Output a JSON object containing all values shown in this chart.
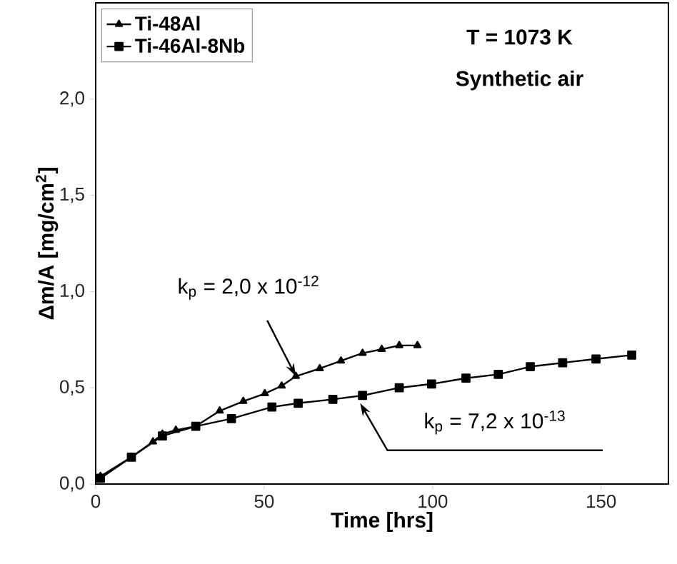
{
  "chart_data": {
    "type": "line",
    "xlabel": "Time [hrs]",
    "ylabel": "Δm/A [mg/cm$^{2}$]",
    "xlim": [
      0,
      170
    ],
    "ylim": [
      0,
      2.5
    ],
    "xticks": [
      0,
      50,
      100,
      150
    ],
    "yticks": [
      {
        "value": 0,
        "label": "0,0"
      },
      {
        "value": 0.5,
        "label": "0,5"
      },
      {
        "value": 1.0,
        "label": "1,0"
      },
      {
        "value": 1.5,
        "label": "1,5"
      },
      {
        "value": 2.0,
        "label": "2,0"
      }
    ],
    "legend": "top left",
    "grid": false,
    "series": [
      {
        "name": "Ti-48Al",
        "color": "#000000",
        "marker": "triangle",
        "x": [
          1.4,
          10.6,
          17.0,
          19.8,
          23.8,
          29.7,
          36.8,
          43.8,
          50.2,
          55.2,
          59.4,
          66.5,
          72.8,
          79.2,
          84.9,
          90.1,
          95.5
        ],
        "values": [
          0.04,
          0.14,
          0.22,
          0.26,
          0.28,
          0.3,
          0.38,
          0.43,
          0.47,
          0.51,
          0.56,
          0.6,
          0.64,
          0.68,
          0.7,
          0.72,
          0.72
        ]
      },
      {
        "name": "Ti-46Al-8Nb",
        "color": "#000000",
        "marker": "square",
        "x": [
          1.4,
          10.6,
          19.8,
          29.7,
          40.3,
          52.3,
          60.1,
          70.4,
          79.2,
          90.1,
          99.7,
          109.9,
          119.5,
          129.0,
          138.6,
          148.5,
          159.1
        ],
        "values": [
          0.03,
          0.14,
          0.25,
          0.3,
          0.34,
          0.4,
          0.42,
          0.44,
          0.46,
          0.5,
          0.52,
          0.55,
          0.57,
          0.61,
          0.63,
          0.65,
          0.67
        ]
      }
    ],
    "annotations": [
      "T = 1073 K",
      "Synthetic air",
      {
        "text": "k$_{p}$ = 2,0 x 10$^{-12}$",
        "x": 59.4,
        "y": 0.56
      },
      {
        "text": "k$_{p}$ = 7,2 x 10$^{-13}$",
        "x": 78.5,
        "y": 0.42
      }
    ]
  }
}
